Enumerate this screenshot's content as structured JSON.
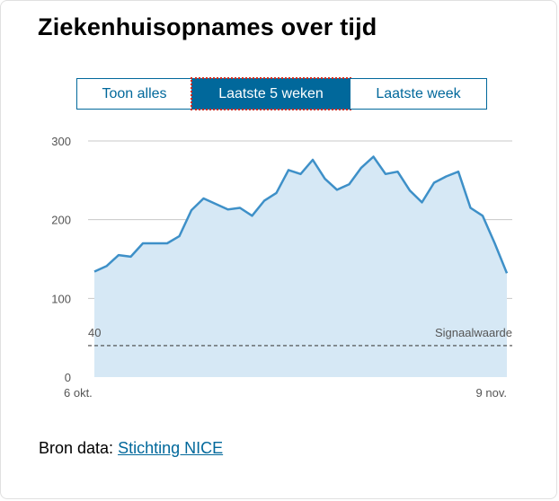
{
  "title": "Ziekenhuisopnames over tijd",
  "tabs": [
    {
      "label": "Toon alles",
      "active": false
    },
    {
      "label": "Laatste 5 weken",
      "active": true
    },
    {
      "label": "Laatste week",
      "active": false
    }
  ],
  "source": {
    "prefix": "Bron data:",
    "link": "Stichting NICE"
  },
  "colors": {
    "accent": "#01689b",
    "line": "#3e90c8",
    "area": "#d6e8f5",
    "grid": "#c8c8c8"
  },
  "chart_data": {
    "type": "area",
    "x_start_label": "6 okt.",
    "x_end_label": "9 nov.",
    "y_ticks": [
      0,
      100,
      200,
      300
    ],
    "ylim": [
      0,
      300
    ],
    "grid": true,
    "signal": {
      "value": 40,
      "label": "Signaalwaarde"
    },
    "values": [
      134,
      141,
      155,
      153,
      170,
      170,
      170,
      179,
      212,
      227,
      220,
      213,
      215,
      205,
      224,
      234,
      263,
      258,
      276,
      252,
      238,
      245,
      266,
      280,
      258,
      261,
      237,
      222,
      247,
      255,
      261,
      215,
      205,
      170,
      132
    ]
  }
}
